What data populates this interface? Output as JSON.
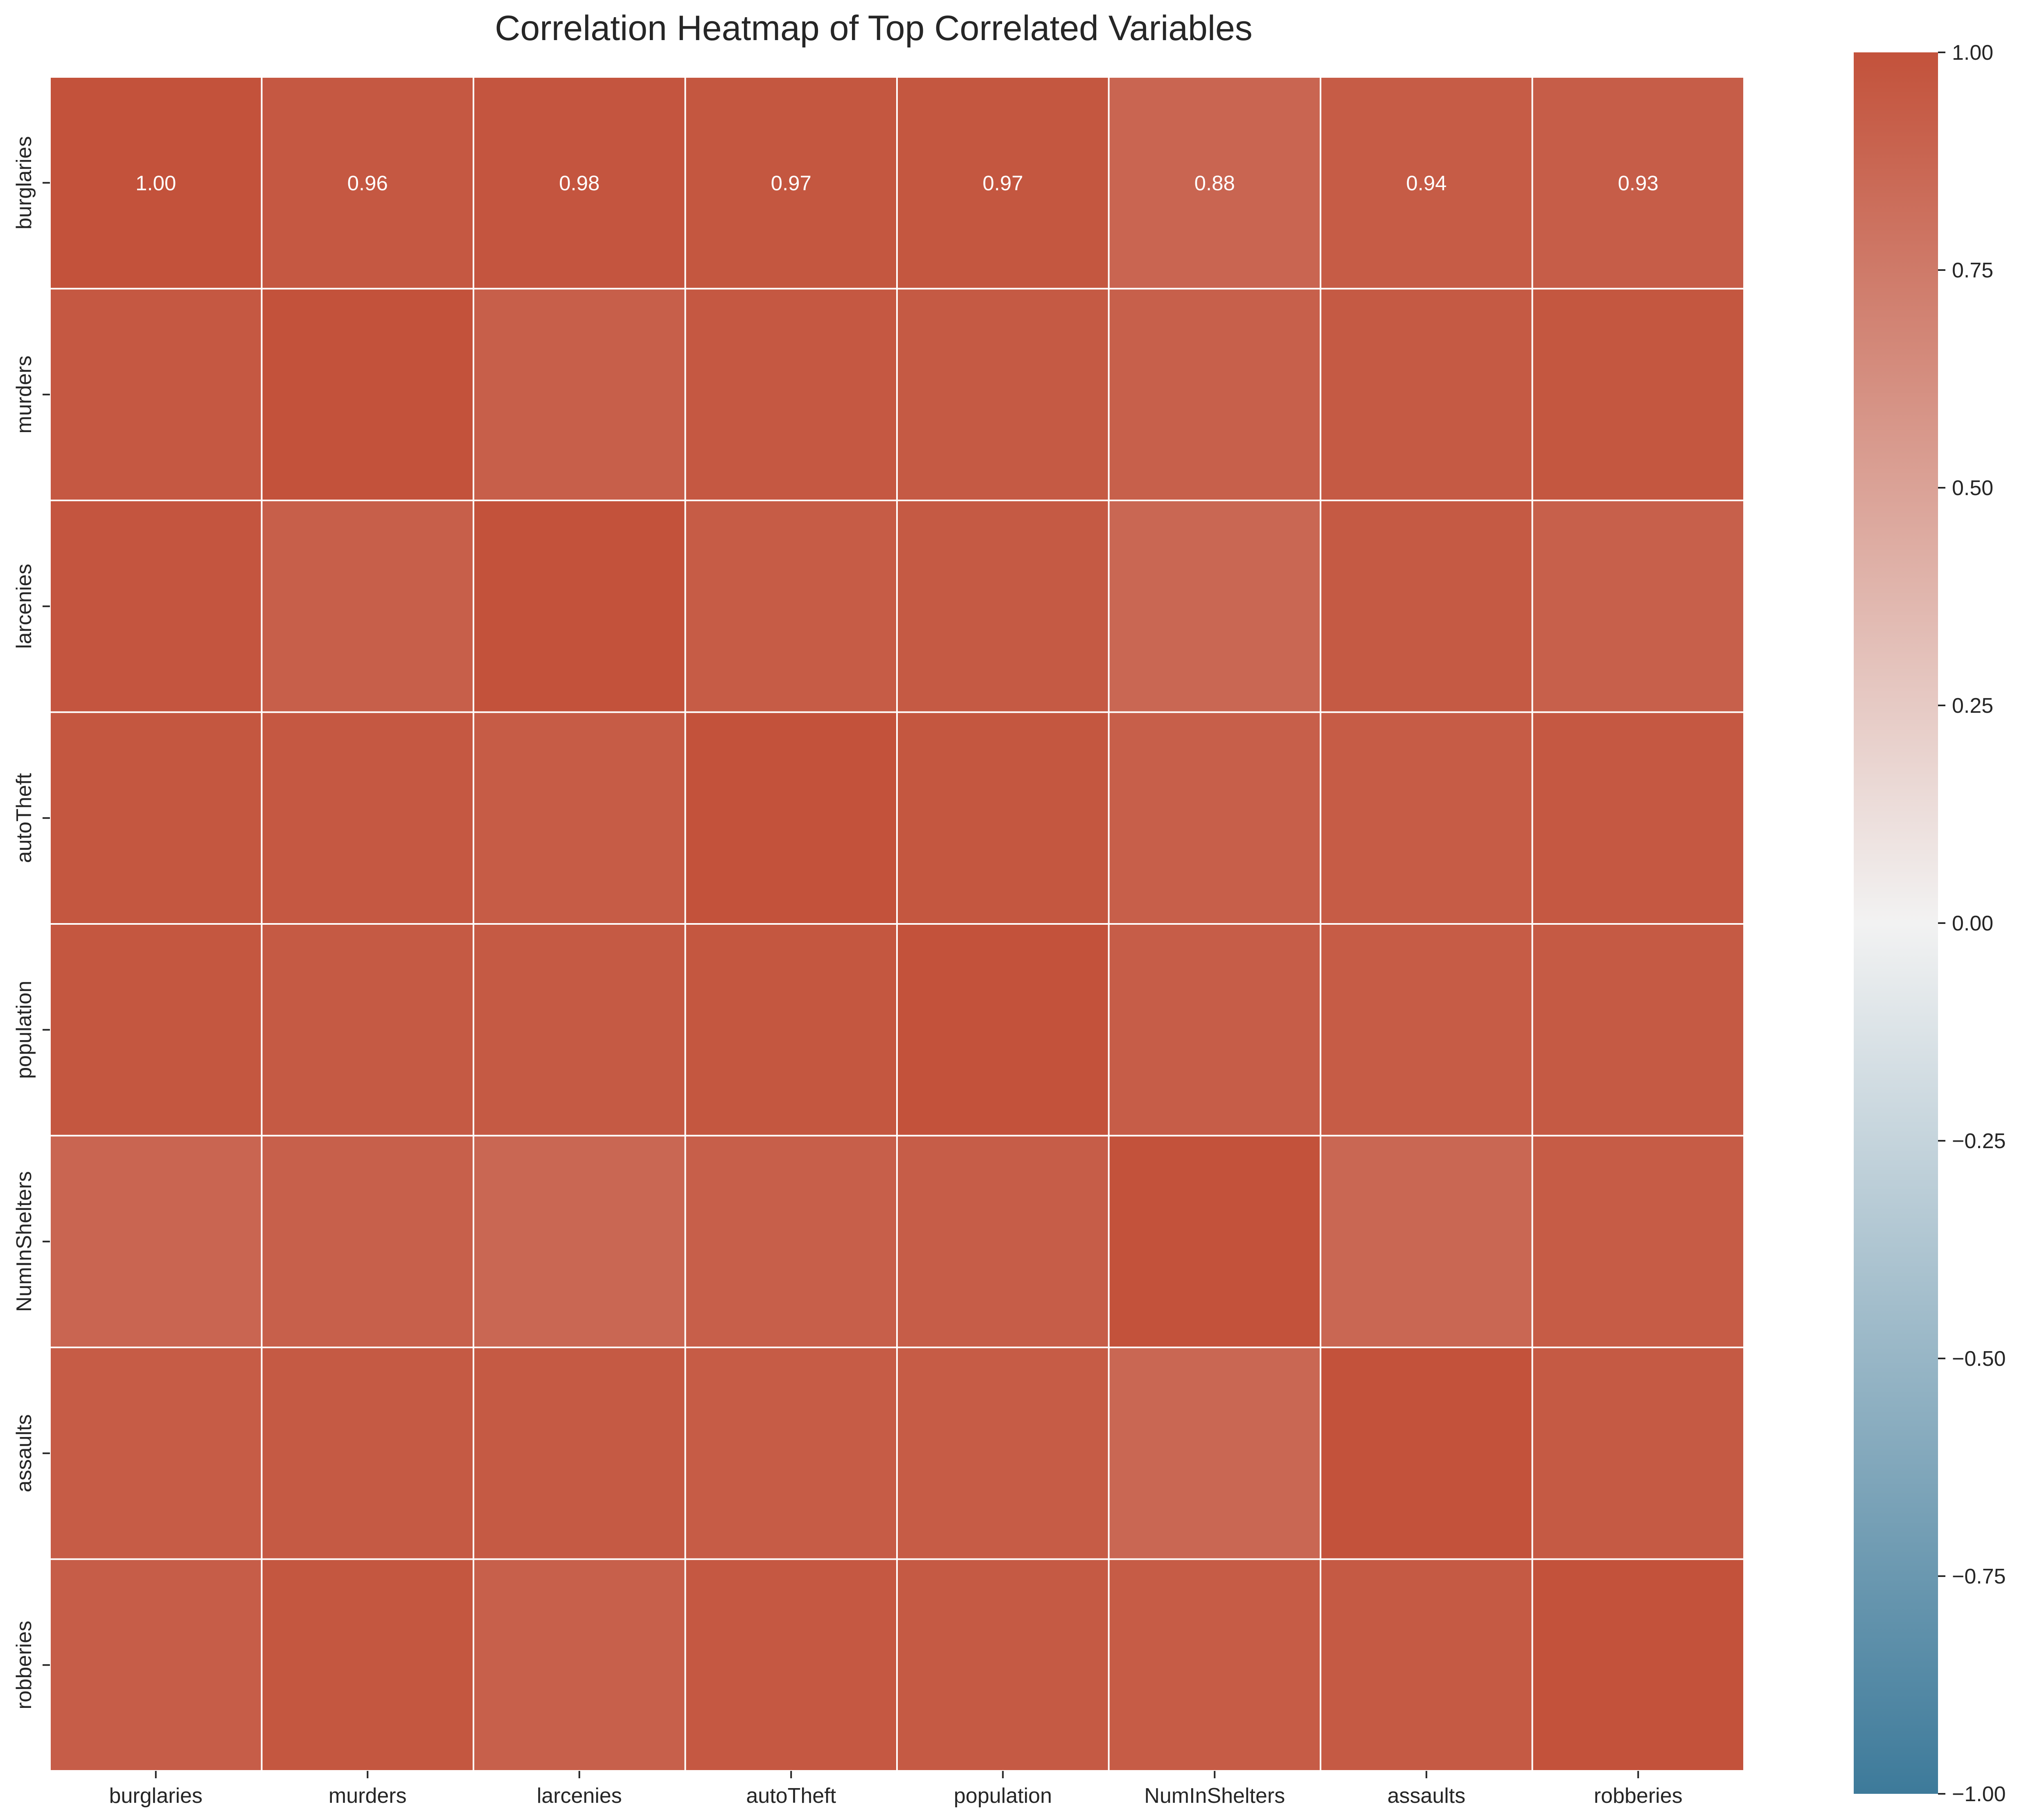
{
  "chart_data": {
    "type": "heatmap",
    "title": "Correlation Heatmap of Top Correlated Variables",
    "x_labels": [
      "burglaries",
      "murders",
      "larcenies",
      "autoTheft",
      "population",
      "NumInShelters",
      "assaults",
      "robberies"
    ],
    "y_labels": [
      "burglaries",
      "murders",
      "larcenies",
      "autoTheft",
      "population",
      "NumInShelters",
      "assaults",
      "robberies"
    ],
    "values": [
      [
        1.0,
        0.96,
        0.98,
        0.97,
        0.97,
        0.88,
        0.94,
        0.93
      ],
      [
        0.96,
        1.0,
        0.92,
        0.96,
        0.95,
        0.91,
        0.95,
        0.97
      ],
      [
        0.98,
        0.92,
        1.0,
        0.94,
        0.95,
        0.87,
        0.95,
        0.91
      ],
      [
        0.97,
        0.96,
        0.94,
        1.0,
        0.97,
        0.92,
        0.94,
        0.96
      ],
      [
        0.97,
        0.95,
        0.95,
        0.97,
        1.0,
        0.93,
        0.94,
        0.95
      ],
      [
        0.88,
        0.91,
        0.87,
        0.92,
        0.93,
        1.0,
        0.87,
        0.94
      ],
      [
        0.94,
        0.95,
        0.95,
        0.94,
        0.94,
        0.87,
        1.0,
        0.95
      ],
      [
        0.93,
        0.97,
        0.91,
        0.96,
        0.95,
        0.94,
        0.95,
        1.0
      ]
    ],
    "annotated_row": 0,
    "value_format": "0.00",
    "colorbar": {
      "vmin": -1.0,
      "vmax": 1.0,
      "ticks": [
        -1.0,
        -0.75,
        -0.5,
        -0.25,
        0.0,
        0.25,
        0.5,
        0.75,
        1.0
      ],
      "tick_labels": [
        "−1.00",
        "−0.75",
        "−0.50",
        "−0.25",
        "0.00",
        "0.25",
        "0.50",
        "0.75",
        "1.00"
      ],
      "colors": {
        "min": "#3d7a9a",
        "mid": "#f2f2f2",
        "max": "#c3523b"
      }
    }
  }
}
